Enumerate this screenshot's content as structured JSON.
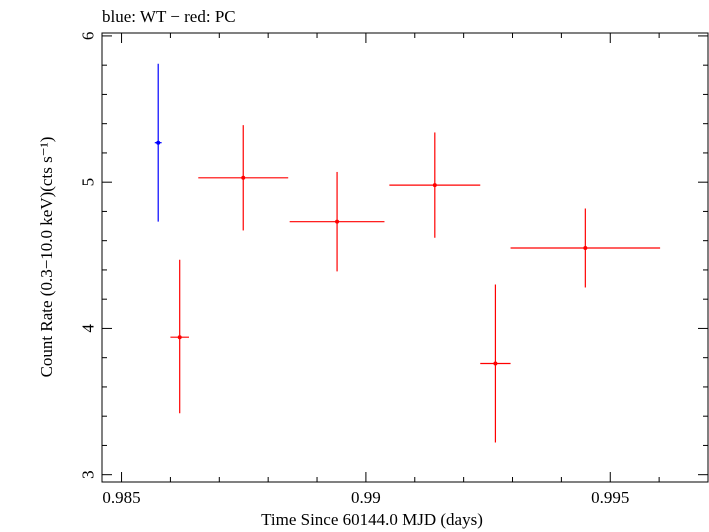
{
  "chart_data": {
    "type": "scatter",
    "title": "blue: WT − red: PC",
    "xlabel": "Time Since 60144.0 MJD (days)",
    "ylabel": "Count Rate (0.3−10.0 keV)(cts s⁻¹)",
    "xlim": [
      0.9846,
      0.997
    ],
    "ylim": [
      2.95,
      6.02
    ],
    "x_ticks": [
      0.985,
      0.99,
      0.995
    ],
    "x_tick_labels": [
      "0.985",
      "0.99",
      "0.995"
    ],
    "y_ticks": [
      3,
      4,
      5,
      6
    ],
    "y_tick_labels": [
      "3",
      "4",
      "5",
      "6"
    ],
    "series": [
      {
        "name": "WT",
        "color": "#0000ff",
        "points": [
          {
            "x": 0.98575,
            "y": 5.27,
            "xerr": 7e-05,
            "yerr_lo": 0.54,
            "yerr_hi": 0.54
          }
        ]
      },
      {
        "name": "PC",
        "color": "#ff0000",
        "points": [
          {
            "x": 0.98619,
            "y": 3.94,
            "xerr": 0.00019,
            "yerr_lo": 0.52,
            "yerr_hi": 0.53
          },
          {
            "x": 0.98749,
            "y": 5.03,
            "xerr": 0.00092,
            "yerr_lo": 0.36,
            "yerr_hi": 0.36
          },
          {
            "x": 0.98941,
            "y": 4.73,
            "xerr": 0.00097,
            "yerr_lo": 0.34,
            "yerr_hi": 0.34
          },
          {
            "x": 0.99141,
            "y": 4.98,
            "xerr": 0.00093,
            "yerr_lo": 0.36,
            "yerr_hi": 0.36
          },
          {
            "x": 0.99265,
            "y": 3.76,
            "xerr": 0.00031,
            "yerr_lo": 0.54,
            "yerr_hi": 0.54
          },
          {
            "x": 0.99449,
            "y": 4.55,
            "xerr": 0.00153,
            "yerr_lo": 0.27,
            "yerr_hi": 0.27
          }
        ]
      }
    ]
  }
}
